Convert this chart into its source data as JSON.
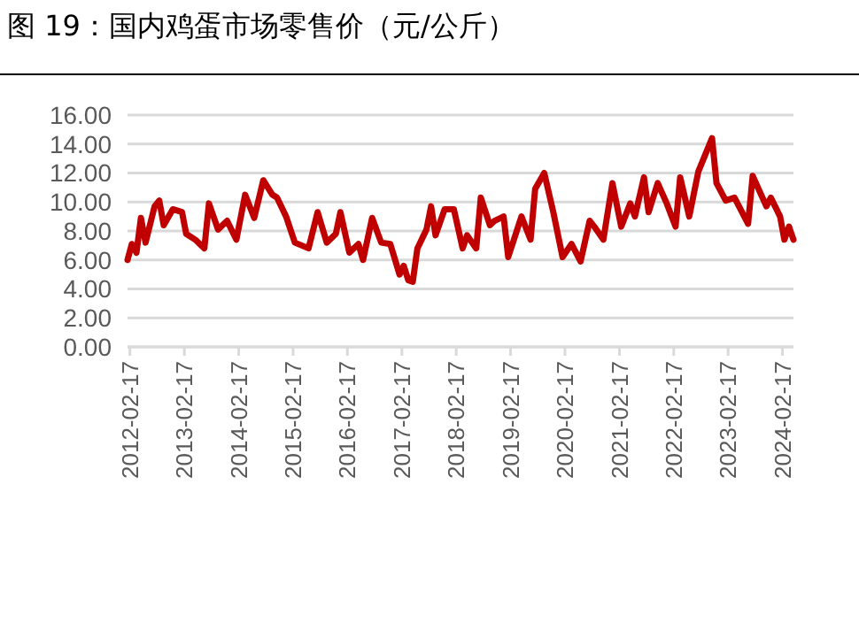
{
  "chart_data": {
    "type": "line",
    "title": "图 19：国内鸡蛋市场零售价（元/公斤）",
    "xlim": [
      "2012-02-01",
      "2024-05-01"
    ],
    "xticks": [
      "2012-02-17",
      "2013-02-17",
      "2014-02-17",
      "2015-02-17",
      "2016-02-17",
      "2017-02-17",
      "2018-02-17",
      "2019-02-17",
      "2020-02-17",
      "2021-02-17",
      "2022-02-17",
      "2023-02-17",
      "2024-02-17"
    ],
    "ylim": [
      0,
      16
    ],
    "yticks": [
      {
        "value": 0,
        "label": "0.00"
      },
      {
        "value": 2,
        "label": "2.00"
      },
      {
        "value": 4,
        "label": "4.00"
      },
      {
        "value": 6,
        "label": "6.00"
      },
      {
        "value": 8,
        "label": "8.00"
      },
      {
        "value": 10,
        "label": "10.00"
      },
      {
        "value": 12,
        "label": "12.00"
      },
      {
        "value": 14,
        "label": "14.00"
      },
      {
        "value": 16,
        "label": "16.00"
      }
    ],
    "grid": "y",
    "series": [
      {
        "color": "#c00000",
        "x": [
          "2012-02",
          "2012-03",
          "2012-04",
          "2012-05",
          "2012-06",
          "2012-08",
          "2012-09",
          "2012-10",
          "2012-12",
          "2013-02",
          "2013-03",
          "2013-05",
          "2013-07",
          "2013-08",
          "2013-10",
          "2013-12",
          "2014-02",
          "2014-04",
          "2014-06",
          "2014-08",
          "2014-10",
          "2014-11",
          "2015-01",
          "2015-03",
          "2015-06",
          "2015-08",
          "2015-10",
          "2015-12",
          "2016-01",
          "2016-03",
          "2016-05",
          "2016-06",
          "2016-08",
          "2016-10",
          "2016-12",
          "2017-02",
          "2017-03",
          "2017-04",
          "2017-05",
          "2017-06",
          "2017-08",
          "2017-09",
          "2017-10",
          "2017-12",
          "2018-02",
          "2018-04",
          "2018-05",
          "2018-07",
          "2018-08",
          "2018-10",
          "2018-11",
          "2019-01",
          "2019-02",
          "2019-05",
          "2019-07",
          "2019-08",
          "2019-10",
          "2019-12",
          "2020-02",
          "2020-04",
          "2020-06",
          "2020-08",
          "2020-09",
          "2020-11",
          "2021-01",
          "2021-03",
          "2021-05",
          "2021-06",
          "2021-08",
          "2021-09",
          "2021-11",
          "2022-01",
          "2022-03",
          "2022-04",
          "2022-06",
          "2022-08",
          "2022-11",
          "2022-12",
          "2023-02",
          "2023-04",
          "2023-07",
          "2023-08",
          "2023-11",
          "2023-12",
          "2024-02",
          "2024-03",
          "2024-04",
          "2024-05"
        ],
        "values": [
          6.0,
          7.1,
          6.5,
          8.9,
          7.2,
          9.7,
          10.1,
          8.4,
          9.5,
          9.3,
          7.8,
          7.4,
          6.8,
          9.9,
          8.1,
          8.7,
          7.4,
          10.5,
          8.9,
          11.5,
          10.5,
          10.3,
          9.0,
          7.2,
          6.8,
          9.3,
          7.2,
          7.8,
          9.3,
          6.5,
          7.1,
          6.0,
          8.9,
          7.2,
          7.1,
          5.0,
          5.6,
          4.6,
          4.5,
          6.8,
          8.1,
          9.7,
          7.7,
          9.5,
          9.5,
          6.8,
          7.7,
          6.8,
          10.3,
          8.4,
          8.7,
          9.0,
          6.2,
          9.0,
          7.4,
          10.9,
          12.0,
          9.3,
          6.2,
          7.1,
          5.9,
          8.7,
          8.3,
          7.4,
          11.3,
          8.3,
          9.9,
          9.0,
          11.7,
          9.3,
          11.3,
          9.9,
          8.3,
          11.7,
          9.0,
          12.1,
          14.4,
          11.3,
          10.1,
          10.3,
          8.5,
          11.8,
          9.7,
          10.3,
          9.0,
          7.4,
          8.3,
          7.4
        ]
      }
    ]
  }
}
